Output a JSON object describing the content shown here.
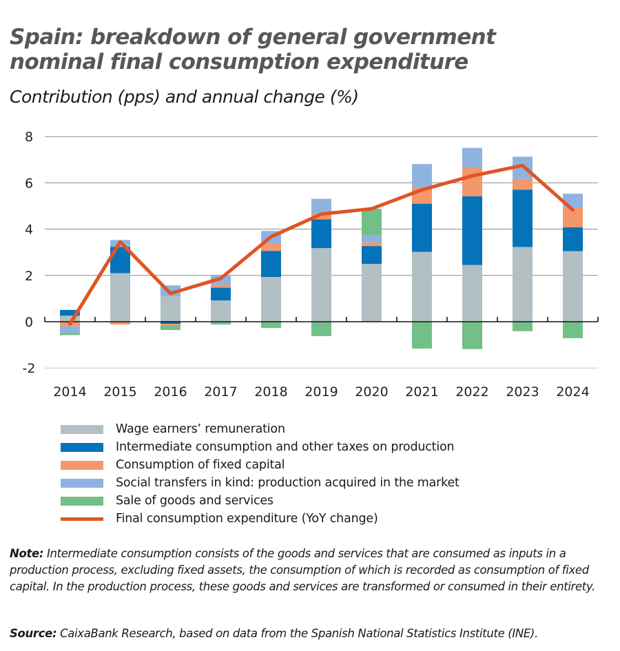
{
  "chart_data": {
    "type": "bar",
    "stacked": true,
    "title": "Spain: breakdown of general government nominal final consumption expenditure",
    "subtitle": "Contribution (pps) and annual change (%)",
    "xlabel": "",
    "ylabel": "",
    "ylim": [
      -2,
      8
    ],
    "yticks": [
      "8",
      "6",
      "4",
      "2",
      "0",
      "-2"
    ],
    "grid": true,
    "legend_position": "bottom",
    "categories": [
      "2014",
      "2015",
      "2016",
      "2017",
      "2018",
      "2019",
      "2020",
      "2021",
      "2022",
      "2023",
      "2024"
    ],
    "series": [
      {
        "name": "Wage earners’ remuneration",
        "kind": "bar",
        "color": "#b2bfc3",
        "values": [
          0.26,
          2.1,
          1.1,
          0.92,
          1.93,
          3.18,
          2.5,
          3.02,
          2.45,
          3.23,
          3.05
        ]
      },
      {
        "name": "Intermediate consumption and other taxes on production",
        "kind": "bar",
        "color": "#0573ba",
        "values": [
          0.25,
          1.13,
          -0.09,
          0.55,
          1.13,
          1.24,
          0.77,
          2.08,
          2.97,
          2.47,
          1.03
        ]
      },
      {
        "name": "Consumption of fixed capital",
        "kind": "bar",
        "color": "#f4976b",
        "values": [
          -0.2,
          -0.12,
          -0.07,
          0.12,
          0.3,
          0.25,
          0.15,
          0.7,
          1.23,
          0.47,
          0.85
        ]
      },
      {
        "name": "Social transfers in kind: production acquired in the market",
        "kind": "bar",
        "color": "#8fb3e0",
        "values": [
          -0.28,
          0.3,
          0.47,
          0.4,
          0.56,
          0.64,
          0.33,
          1.01,
          0.86,
          0.96,
          0.6
        ]
      },
      {
        "name": "Sale of goods and services",
        "kind": "bar",
        "color": "#72bf87",
        "values": [
          -0.1,
          0.0,
          -0.2,
          -0.12,
          -0.27,
          -0.62,
          1.13,
          -1.16,
          -1.18,
          -0.41,
          -0.71
        ]
      },
      {
        "name": "Final consumption expenditure (YoY change)",
        "kind": "line",
        "color": "#e05424",
        "values": [
          -0.1,
          3.45,
          1.22,
          1.87,
          3.67,
          4.65,
          4.88,
          5.7,
          6.3,
          6.75,
          4.83
        ]
      }
    ]
  },
  "note": {
    "label": "Note:",
    "text": " Intermediate consumption consists of the goods and services that are consumed as inputs in a production process, excluding fixed assets, the consumption of which is recorded as consumption of fixed capital. In the production process, these goods and services are transformed or consumed in their entirety."
  },
  "source": {
    "label": "Source:",
    "text": " CaixaBank Research, based on data from the Spanish National Statistics Institute (INE)."
  }
}
